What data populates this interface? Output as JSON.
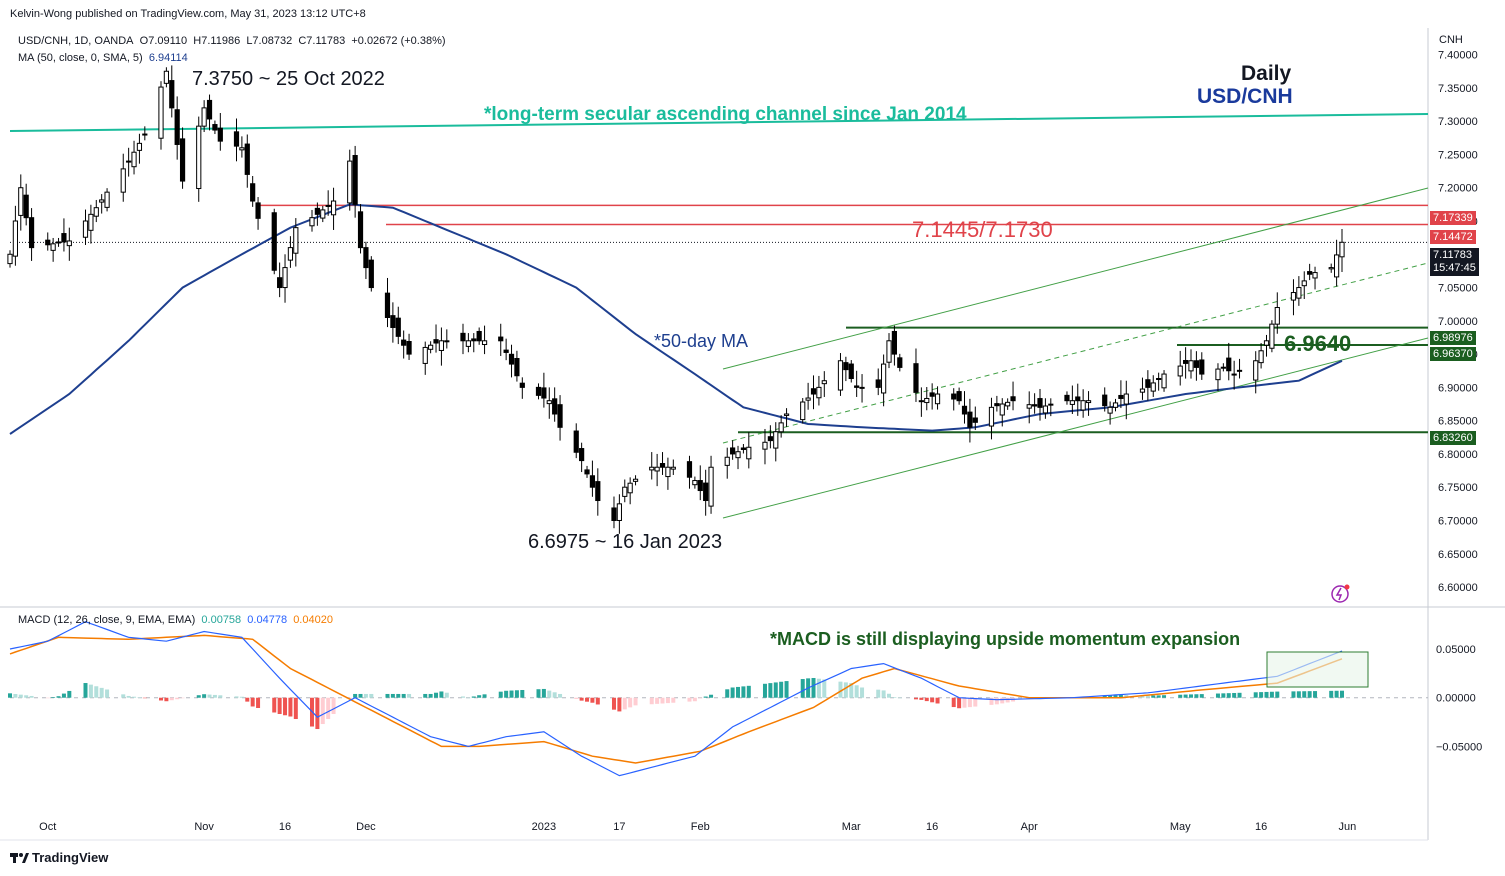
{
  "publisher": "Kelvin-Wong published on TradingView.com, May 31, 2023 13:12 UTC+8",
  "symbol_line": "USD/CNH, 1D, OANDA",
  "ohlc": {
    "o": "O7.09110",
    "h": "H7.11986",
    "l": "L7.08732",
    "c": "C7.11783",
    "chg": "+0.02672 (+0.38%)"
  },
  "ma_line": {
    "label": "MA (50, close, 0, SMA, 5)",
    "value": "6.94114"
  },
  "macd_line": {
    "label": "MACD (12, 26, close, 9, EMA, EMA)",
    "hist": "0.00758",
    "macd": "0.04778",
    "signal": "0.04020"
  },
  "currency": "CNH",
  "watermark": "TradingView",
  "annotations": {
    "high": "7.3750 ~ 25 Oct 2022",
    "low": "6.6975 ~ 16 Jan 2023",
    "timeframe": "Daily",
    "pair": "USD/CNH",
    "channel": "*long-term secular ascending channel since Jan 2014",
    "resistance": "7.1445/7.1730",
    "ma_note": "*50-day MA",
    "support": "6.9640",
    "macd_note": "*MACD is still displaying upside momentum expansion"
  },
  "price_tags": {
    "r1": "7.17339",
    "r2": "7.14472",
    "last": "7.11783",
    "countdown": "15:47:45",
    "s1": "6.98976",
    "s2": "6.96370",
    "s3": "6.83260"
  },
  "colors": {
    "up": "#ffffff",
    "down": "#000000",
    "ma": "#1e3f8f",
    "channel_long": "#1abc9c",
    "resistance": "#e0434a",
    "support": "#1b5e20",
    "trend": "#43a047",
    "macd": "#2962ff",
    "signal": "#f57c00",
    "hist_pos_strong": "#26a69a",
    "hist_pos_weak": "#b2dfdb",
    "hist_neg_strong": "#ef5350",
    "hist_neg_weak": "#ffcdd2"
  },
  "chart_data": [
    {
      "type": "candlestick",
      "title": "USD/CNH, 1D, OANDA",
      "x_labels": [
        "Oct",
        "Nov",
        "16",
        "Dec",
        "2023",
        "17",
        "Feb",
        "Mar",
        "16",
        "Apr",
        "May",
        "16",
        "Jun"
      ],
      "ylim": [
        6.57,
        7.44
      ],
      "y_ticks": [
        6.6,
        6.65,
        6.7,
        6.75,
        6.8,
        6.85,
        6.9,
        6.95,
        7.0,
        7.05,
        7.1,
        7.15,
        7.2,
        7.25,
        7.3,
        7.35,
        7.4
      ],
      "series": [
        {
          "name": "USD/CNH",
          "path": [
            [
              "2022-09-26",
              7.1
            ],
            [
              "2022-09-28",
              7.2
            ],
            [
              "2022-09-30",
              7.11
            ],
            [
              "2022-10-07",
              7.12
            ],
            [
              "2022-10-12",
              7.17
            ],
            [
              "2022-10-18",
              7.24
            ],
            [
              "2022-10-21",
              7.28
            ],
            [
              "2022-10-25",
              7.375
            ],
            [
              "2022-10-28",
              7.21
            ],
            [
              "2022-11-01",
              7.32
            ],
            [
              "2022-11-04",
              7.27
            ],
            [
              "2022-11-08",
              7.26
            ],
            [
              "2022-11-10",
              7.18
            ],
            [
              "2022-11-15",
              7.05
            ],
            [
              "2022-11-18",
              7.14
            ],
            [
              "2022-11-22",
              7.16
            ],
            [
              "2022-11-25",
              7.18
            ],
            [
              "2022-11-28",
              7.24
            ],
            [
              "2022-11-30",
              7.11
            ],
            [
              "2022-12-02",
              7.05
            ],
            [
              "2022-12-06",
              6.99
            ],
            [
              "2022-12-09",
              6.95
            ],
            [
              "2022-12-15",
              6.97
            ],
            [
              "2022-12-20",
              6.97
            ],
            [
              "2022-12-26",
              6.97
            ],
            [
              "2022-12-30",
              6.9
            ],
            [
              "2023-01-04",
              6.88
            ],
            [
              "2023-01-06",
              6.84
            ],
            [
              "2023-01-10",
              6.79
            ],
            [
              "2023-01-13",
              6.73
            ],
            [
              "2023-01-16",
              6.7
            ],
            [
              "2023-01-18",
              6.75
            ],
            [
              "2023-01-23",
              6.78
            ],
            [
              "2023-01-27",
              6.78
            ],
            [
              "2023-01-31",
              6.76
            ],
            [
              "2023-02-02",
              6.73
            ],
            [
              "2023-02-03",
              6.78
            ],
            [
              "2023-02-07",
              6.8
            ],
            [
              "2023-02-10",
              6.81
            ],
            [
              "2023-02-14",
              6.82
            ],
            [
              "2023-02-17",
              6.86
            ],
            [
              "2023-02-22",
              6.89
            ],
            [
              "2023-02-27",
              6.94
            ],
            [
              "2023-03-02",
              6.9
            ],
            [
              "2023-03-06",
              6.9
            ],
            [
              "2023-03-08",
              6.97
            ],
            [
              "2023-03-10",
              6.93
            ],
            [
              "2023-03-14",
              6.88
            ],
            [
              "2023-03-17",
              6.89
            ],
            [
              "2023-03-21",
              6.88
            ],
            [
              "2023-03-23",
              6.84
            ],
            [
              "2023-03-27",
              6.87
            ],
            [
              "2023-03-31",
              6.88
            ],
            [
              "2023-04-05",
              6.87
            ],
            [
              "2023-04-10",
              6.88
            ],
            [
              "2023-04-14",
              6.88
            ],
            [
              "2023-04-18",
              6.87
            ],
            [
              "2023-04-21",
              6.89
            ],
            [
              "2023-04-25",
              6.9
            ],
            [
              "2023-04-28",
              6.92
            ],
            [
              "2023-05-03",
              6.94
            ],
            [
              "2023-05-05",
              6.92
            ],
            [
              "2023-05-09",
              6.93
            ],
            [
              "2023-05-11",
              6.92
            ],
            [
              "2023-05-15",
              6.94
            ],
            [
              "2023-05-17",
              6.97
            ],
            [
              "2023-05-19",
              7.02
            ],
            [
              "2023-05-23",
              7.05
            ],
            [
              "2023-05-25",
              7.07
            ],
            [
              "2023-05-29",
              7.08
            ],
            [
              "2023-05-31",
              7.118
            ]
          ]
        },
        {
          "name": "MA (50, close, 0, SMA, 5)",
          "path": [
            [
              "2022-09-26",
              6.83
            ],
            [
              "2022-10-07",
              6.89
            ],
            [
              "2022-10-18",
              6.97
            ],
            [
              "2022-10-28",
              7.05
            ],
            [
              "2022-11-08",
              7.1
            ],
            [
              "2022-11-17",
              7.14
            ],
            [
              "2022-11-28",
              7.175
            ],
            [
              "2022-12-06",
              7.17
            ],
            [
              "2022-12-15",
              7.14
            ],
            [
              "2022-12-27",
              7.1
            ],
            [
              "2023-01-09",
              7.05
            ],
            [
              "2023-01-20",
              6.98
            ],
            [
              "2023-01-31",
              6.92
            ],
            [
              "2023-02-09",
              6.87
            ],
            [
              "2023-02-21",
              6.845
            ],
            [
              "2023-03-03",
              6.84
            ],
            [
              "2023-03-16",
              6.835
            ],
            [
              "2023-03-24",
              6.84
            ],
            [
              "2023-04-05",
              6.86
            ],
            [
              "2023-04-18",
              6.87
            ],
            [
              "2023-05-02",
              6.89
            ],
            [
              "2023-05-12",
              6.9
            ],
            [
              "2023-05-23",
              6.91
            ],
            [
              "2023-05-31",
              6.94
            ]
          ]
        }
      ]
    },
    {
      "type": "line",
      "title": "MACD (12, 26, close, 9, EMA, EMA)",
      "x_labels": [
        "Oct",
        "Nov",
        "16",
        "Dec",
        "2023",
        "17",
        "Feb",
        "Mar",
        "16",
        "Apr",
        "May",
        "16",
        "Jun"
      ],
      "ylim": [
        -0.105,
        0.088
      ],
      "y_ticks": [
        -0.05,
        0.0,
        0.05
      ],
      "series": [
        {
          "name": "MACD",
          "path": [
            [
              "2022-09-26",
              0.05
            ],
            [
              "2022-10-03",
              0.058
            ],
            [
              "2022-10-10",
              0.078
            ],
            [
              "2022-10-18",
              0.062
            ],
            [
              "2022-10-25",
              0.058
            ],
            [
              "2022-11-01",
              0.068
            ],
            [
              "2022-11-08",
              0.062
            ],
            [
              "2022-11-15",
              0.02
            ],
            [
              "2022-11-22",
              -0.02
            ],
            [
              "2022-11-29",
              0.0
            ],
            [
              "2022-12-06",
              -0.02
            ],
            [
              "2022-12-13",
              -0.04
            ],
            [
              "2022-12-20",
              -0.05
            ],
            [
              "2022-12-27",
              -0.04
            ],
            [
              "2023-01-03",
              -0.035
            ],
            [
              "2023-01-10",
              -0.06
            ],
            [
              "2023-01-17",
              -0.08
            ],
            [
              "2023-01-24",
              -0.07
            ],
            [
              "2023-01-31",
              -0.06
            ],
            [
              "2023-02-07",
              -0.03
            ],
            [
              "2023-02-14",
              -0.01
            ],
            [
              "2023-02-21",
              0.01
            ],
            [
              "2023-03-01",
              0.03
            ],
            [
              "2023-03-07",
              0.035
            ],
            [
              "2023-03-14",
              0.02
            ],
            [
              "2023-03-21",
              0.0
            ],
            [
              "2023-03-28",
              -0.002
            ],
            [
              "2023-04-11",
              0.0
            ],
            [
              "2023-04-25",
              0.005
            ],
            [
              "2023-05-09",
              0.015
            ],
            [
              "2023-05-19",
              0.022
            ],
            [
              "2023-05-31",
              0.048
            ]
          ]
        },
        {
          "name": "Signal",
          "path": [
            [
              "2022-09-26",
              0.045
            ],
            [
              "2022-10-05",
              0.062
            ],
            [
              "2022-10-18",
              0.06
            ],
            [
              "2022-11-01",
              0.064
            ],
            [
              "2022-11-10",
              0.06
            ],
            [
              "2022-11-17",
              0.03
            ],
            [
              "2022-11-24",
              0.01
            ],
            [
              "2022-12-01",
              -0.01
            ],
            [
              "2022-12-08",
              -0.03
            ],
            [
              "2022-12-15",
              -0.05
            ],
            [
              "2022-12-22",
              -0.05
            ],
            [
              "2023-01-03",
              -0.045
            ],
            [
              "2023-01-12",
              -0.06
            ],
            [
              "2023-01-20",
              -0.067
            ],
            [
              "2023-02-01",
              -0.055
            ],
            [
              "2023-02-10",
              -0.035
            ],
            [
              "2023-02-22",
              -0.01
            ],
            [
              "2023-03-03",
              0.02
            ],
            [
              "2023-03-09",
              0.03
            ],
            [
              "2023-03-21",
              0.012
            ],
            [
              "2023-04-03",
              0.0
            ],
            [
              "2023-04-20",
              0.0
            ],
            [
              "2023-05-05",
              0.008
            ],
            [
              "2023-05-19",
              0.015
            ],
            [
              "2023-05-31",
              0.04
            ]
          ]
        }
      ]
    }
  ]
}
